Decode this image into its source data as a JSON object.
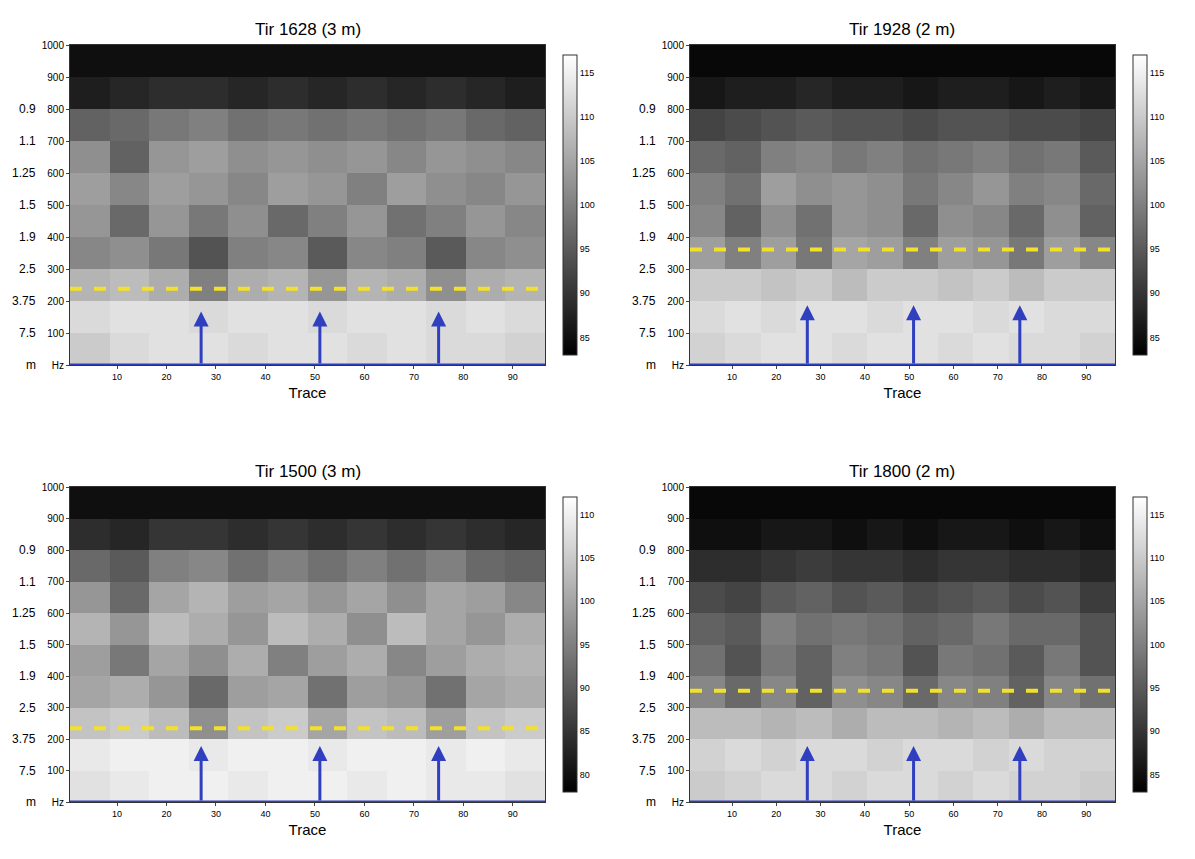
{
  "chart_data": [
    {
      "type": "heatmap",
      "title": "Tir 1628 (3 m)",
      "x_label": "Trace",
      "xlim": [
        0.5,
        96.5
      ],
      "xticks": [
        10,
        20,
        30,
        40,
        50,
        60,
        70,
        80,
        90
      ],
      "ylim": [
        0,
        1000
      ],
      "yticks": [
        {
          "value": 0,
          "label": "Hz"
        },
        100,
        200,
        300,
        400,
        500,
        600,
        700,
        800,
        900,
        1000
      ],
      "depth_labels": [
        {
          "value": 0,
          "label": "m"
        },
        {
          "value": 100,
          "label": "7.5"
        },
        {
          "value": 200,
          "label": "3.75"
        },
        {
          "value": 300,
          "label": "2.5"
        },
        {
          "value": 400,
          "label": "1.9"
        },
        {
          "value": 500,
          "label": "1.5"
        },
        {
          "value": 600,
          "label": "1.25"
        },
        {
          "value": 700,
          "label": "1.1"
        },
        {
          "value": 800,
          "label": "0.9"
        }
      ],
      "grid": false,
      "x": [
        4.5,
        12.5,
        20.5,
        28.5,
        36.5,
        44.5,
        52.5,
        60.5,
        68.5,
        76.5,
        84.5,
        92.5
      ],
      "y": [
        50,
        150,
        250,
        350,
        450,
        550,
        650,
        750,
        850,
        950
      ],
      "z": [
        [
          110,
          112,
          113,
          113,
          112,
          113,
          113,
          112,
          113,
          112,
          112,
          111
        ],
        [
          112,
          113,
          113,
          112,
          113,
          113,
          112,
          113,
          113,
          112,
          113,
          112
        ],
        [
          107,
          108,
          106,
          100,
          106,
          107,
          103,
          107,
          106,
          102,
          106,
          107
        ],
        [
          101,
          102,
          99,
          94,
          100,
          101,
          95,
          101,
          100,
          95,
          101,
          102
        ],
        [
          103,
          97,
          103,
          99,
          102,
          97,
          100,
          103,
          98,
          100,
          103,
          101
        ],
        [
          104,
          101,
          104,
          103,
          101,
          104,
          103,
          100,
          104,
          102,
          101,
          103
        ],
        [
          102,
          96,
          103,
          104,
          102,
          103,
          102,
          103,
          101,
          103,
          102,
          101
        ],
        [
          96,
          97,
          99,
          100,
          98,
          99,
          98,
          99,
          98,
          99,
          97,
          96
        ],
        [
          87,
          88,
          89,
          89,
          88,
          89,
          88,
          89,
          88,
          89,
          88,
          87
        ],
        [
          85,
          85,
          85,
          85,
          85,
          85,
          85,
          85,
          85,
          85,
          85,
          85
        ]
      ],
      "zlim": [
        83,
        117
      ],
      "zticks": [
        85,
        90,
        95,
        100,
        105,
        110,
        115
      ],
      "reference_line": 238,
      "arrows": {
        "x": [
          27,
          51,
          75
        ],
        "tip": 167
      }
    },
    {
      "type": "heatmap",
      "title": "Tir 1928 (2 m)",
      "x_label": "Trace",
      "xlim": [
        0.5,
        96.5
      ],
      "xticks": [
        10,
        20,
        30,
        40,
        50,
        60,
        70,
        80,
        90
      ],
      "ylim": [
        0,
        1000
      ],
      "yticks": [
        {
          "value": 0,
          "label": "Hz"
        },
        100,
        200,
        300,
        400,
        500,
        600,
        700,
        800,
        900,
        1000
      ],
      "depth_labels": [
        {
          "value": 0,
          "label": "m"
        },
        {
          "value": 100,
          "label": "7.5"
        },
        {
          "value": 200,
          "label": "3.75"
        },
        {
          "value": 300,
          "label": "2.5"
        },
        {
          "value": 400,
          "label": "1.9"
        },
        {
          "value": 500,
          "label": "1.5"
        },
        {
          "value": 600,
          "label": "1.25"
        },
        {
          "value": 700,
          "label": "1.1"
        },
        {
          "value": 800,
          "label": "0.9"
        }
      ],
      "grid": false,
      "x": [
        4.5,
        12.5,
        20.5,
        28.5,
        36.5,
        44.5,
        52.5,
        60.5,
        68.5,
        76.5,
        84.5,
        92.5
      ],
      "y": [
        50,
        150,
        250,
        350,
        450,
        550,
        650,
        750,
        850,
        950
      ],
      "z": [
        [
          111,
          112,
          113,
          113,
          112,
          113,
          113,
          112,
          113,
          112,
          112,
          111
        ],
        [
          112,
          113,
          112,
          113,
          113,
          112,
          113,
          113,
          112,
          113,
          112,
          112
        ],
        [
          110,
          110,
          109,
          110,
          108,
          110,
          110,
          109,
          110,
          108,
          110,
          110
        ],
        [
          104,
          100,
          104,
          99,
          105,
          104,
          100,
          104,
          103,
          99,
          104,
          101
        ],
        [
          101,
          96,
          102,
          98,
          103,
          102,
          97,
          102,
          101,
          97,
          102,
          96
        ],
        [
          100,
          98,
          104,
          102,
          103,
          102,
          99,
          101,
          103,
          100,
          101,
          97
        ],
        [
          97,
          96,
          100,
          101,
          99,
          100,
          98,
          99,
          100,
          98,
          99,
          95
        ],
        [
          92,
          93,
          94,
          95,
          94,
          94,
          93,
          94,
          94,
          93,
          93,
          92
        ],
        [
          86,
          87,
          87,
          88,
          87,
          87,
          86,
          87,
          87,
          86,
          87,
          86
        ],
        [
          84,
          84,
          84,
          84,
          84,
          84,
          84,
          84,
          84,
          84,
          84,
          84
        ]
      ],
      "zlim": [
        83,
        117
      ],
      "zticks": [
        85,
        90,
        95,
        100,
        105,
        110,
        115
      ],
      "reference_line": 361,
      "arrows": {
        "x": [
          27,
          51,
          75
        ],
        "tip": 187
      }
    },
    {
      "type": "heatmap",
      "title": "Tir 1500 (3 m)",
      "x_label": "Trace",
      "xlim": [
        0.5,
        96.5
      ],
      "xticks": [
        10,
        20,
        30,
        40,
        50,
        60,
        70,
        80,
        90
      ],
      "ylim": [
        0,
        1000
      ],
      "yticks": [
        {
          "value": 0,
          "label": "Hz"
        },
        100,
        200,
        300,
        400,
        500,
        600,
        700,
        800,
        900,
        1000
      ],
      "depth_labels": [
        {
          "value": 0,
          "label": "m"
        },
        {
          "value": 100,
          "label": "7.5"
        },
        {
          "value": 200,
          "label": "3.75"
        },
        {
          "value": 300,
          "label": "2.5"
        },
        {
          "value": 400,
          "label": "1.9"
        },
        {
          "value": 500,
          "label": "1.5"
        },
        {
          "value": 600,
          "label": "1.25"
        },
        {
          "value": 700,
          "label": "1.1"
        },
        {
          "value": 800,
          "label": "0.9"
        }
      ],
      "grid": false,
      "x": [
        4.5,
        12.5,
        20.5,
        28.5,
        36.5,
        44.5,
        52.5,
        60.5,
        68.5,
        76.5,
        84.5,
        92.5
      ],
      "y": [
        50,
        150,
        250,
        350,
        450,
        550,
        650,
        750,
        850,
        950
      ],
      "z": [
        [
          108,
          109,
          110,
          110,
          109,
          110,
          110,
          109,
          110,
          109,
          109,
          108
        ],
        [
          109,
          110,
          110,
          109,
          110,
          110,
          109,
          110,
          110,
          109,
          110,
          109
        ],
        [
          104,
          105,
          103,
          97,
          104,
          105,
          100,
          104,
          103,
          99,
          104,
          105
        ],
        [
          100,
          101,
          98,
          92,
          99,
          100,
          93,
          99,
          98,
          93,
          100,
          101
        ],
        [
          99,
          94,
          100,
          97,
          101,
          95,
          99,
          101,
          96,
          99,
          101,
          102
        ],
        [
          102,
          98,
          103,
          101,
          98,
          103,
          101,
          97,
          103,
          100,
          98,
          101
        ],
        [
          98,
          92,
          100,
          102,
          99,
          100,
          98,
          100,
          97,
          100,
          99,
          96
        ],
        [
          92,
          90,
          95,
          96,
          93,
          95,
          93,
          95,
          93,
          95,
          92,
          91
        ],
        [
          84,
          83,
          85,
          85,
          84,
          85,
          84,
          85,
          84,
          85,
          84,
          83
        ],
        [
          80,
          80,
          80,
          80,
          80,
          80,
          80,
          80,
          80,
          80,
          80,
          80
        ]
      ],
      "zlim": [
        78,
        112
      ],
      "zticks": [
        80,
        85,
        90,
        95,
        100,
        105,
        110
      ],
      "reference_line": 234,
      "arrows": {
        "x": [
          27,
          51,
          75
        ],
        "tip": 178
      }
    },
    {
      "type": "heatmap",
      "title": "Tir 1800 (2 m)",
      "x_label": "Trace",
      "xlim": [
        0.5,
        96.5
      ],
      "xticks": [
        10,
        20,
        30,
        40,
        50,
        60,
        70,
        80,
        90
      ],
      "ylim": [
        0,
        1000
      ],
      "yticks": [
        {
          "value": 0,
          "label": "Hz"
        },
        100,
        200,
        300,
        400,
        500,
        600,
        700,
        800,
        900,
        1000
      ],
      "depth_labels": [
        {
          "value": 0,
          "label": "m"
        },
        {
          "value": 100,
          "label": "7.5"
        },
        {
          "value": 200,
          "label": "3.75"
        },
        {
          "value": 300,
          "label": "2.5"
        },
        {
          "value": 400,
          "label": "1.9"
        },
        {
          "value": 500,
          "label": "1.5"
        },
        {
          "value": 600,
          "label": "1.25"
        },
        {
          "value": 700,
          "label": "1.1"
        },
        {
          "value": 800,
          "label": "0.9"
        }
      ],
      "grid": false,
      "x": [
        4.5,
        12.5,
        20.5,
        28.5,
        36.5,
        44.5,
        52.5,
        60.5,
        68.5,
        76.5,
        84.5,
        92.5
      ],
      "y": [
        50,
        150,
        250,
        350,
        450,
        550,
        650,
        750,
        850,
        950
      ],
      "z": [
        [
          110,
          111,
          112,
          112,
          111,
          112,
          112,
          111,
          112,
          111,
          111,
          110
        ],
        [
          111,
          112,
          111,
          112,
          112,
          111,
          112,
          112,
          111,
          112,
          111,
          111
        ],
        [
          108,
          108,
          107,
          108,
          106,
          108,
          108,
          107,
          108,
          106,
          108,
          108
        ],
        [
          101,
          97,
          101,
          96,
          102,
          101,
          97,
          101,
          100,
          96,
          101,
          98
        ],
        [
          98,
          94,
          99,
          96,
          100,
          99,
          94,
          99,
          98,
          95,
          99,
          94
        ],
        [
          96,
          95,
          100,
          98,
          99,
          98,
          96,
          97,
          99,
          97,
          97,
          94
        ],
        [
          93,
          92,
          95,
          96,
          94,
          95,
          93,
          94,
          95,
          93,
          94,
          91
        ],
        [
          89,
          89,
          90,
          91,
          90,
          90,
          89,
          90,
          90,
          89,
          89,
          88
        ],
        [
          85,
          85,
          86,
          86,
          85,
          86,
          85,
          86,
          86,
          85,
          86,
          85
        ],
        [
          84,
          84,
          84,
          84,
          84,
          84,
          84,
          84,
          84,
          84,
          84,
          84
        ]
      ],
      "zlim": [
        83,
        117
      ],
      "zticks": [
        85,
        90,
        95,
        100,
        105,
        110,
        115
      ],
      "reference_line": 353,
      "arrows": {
        "x": [
          27,
          51,
          75
        ],
        "tip": 178
      }
    }
  ]
}
